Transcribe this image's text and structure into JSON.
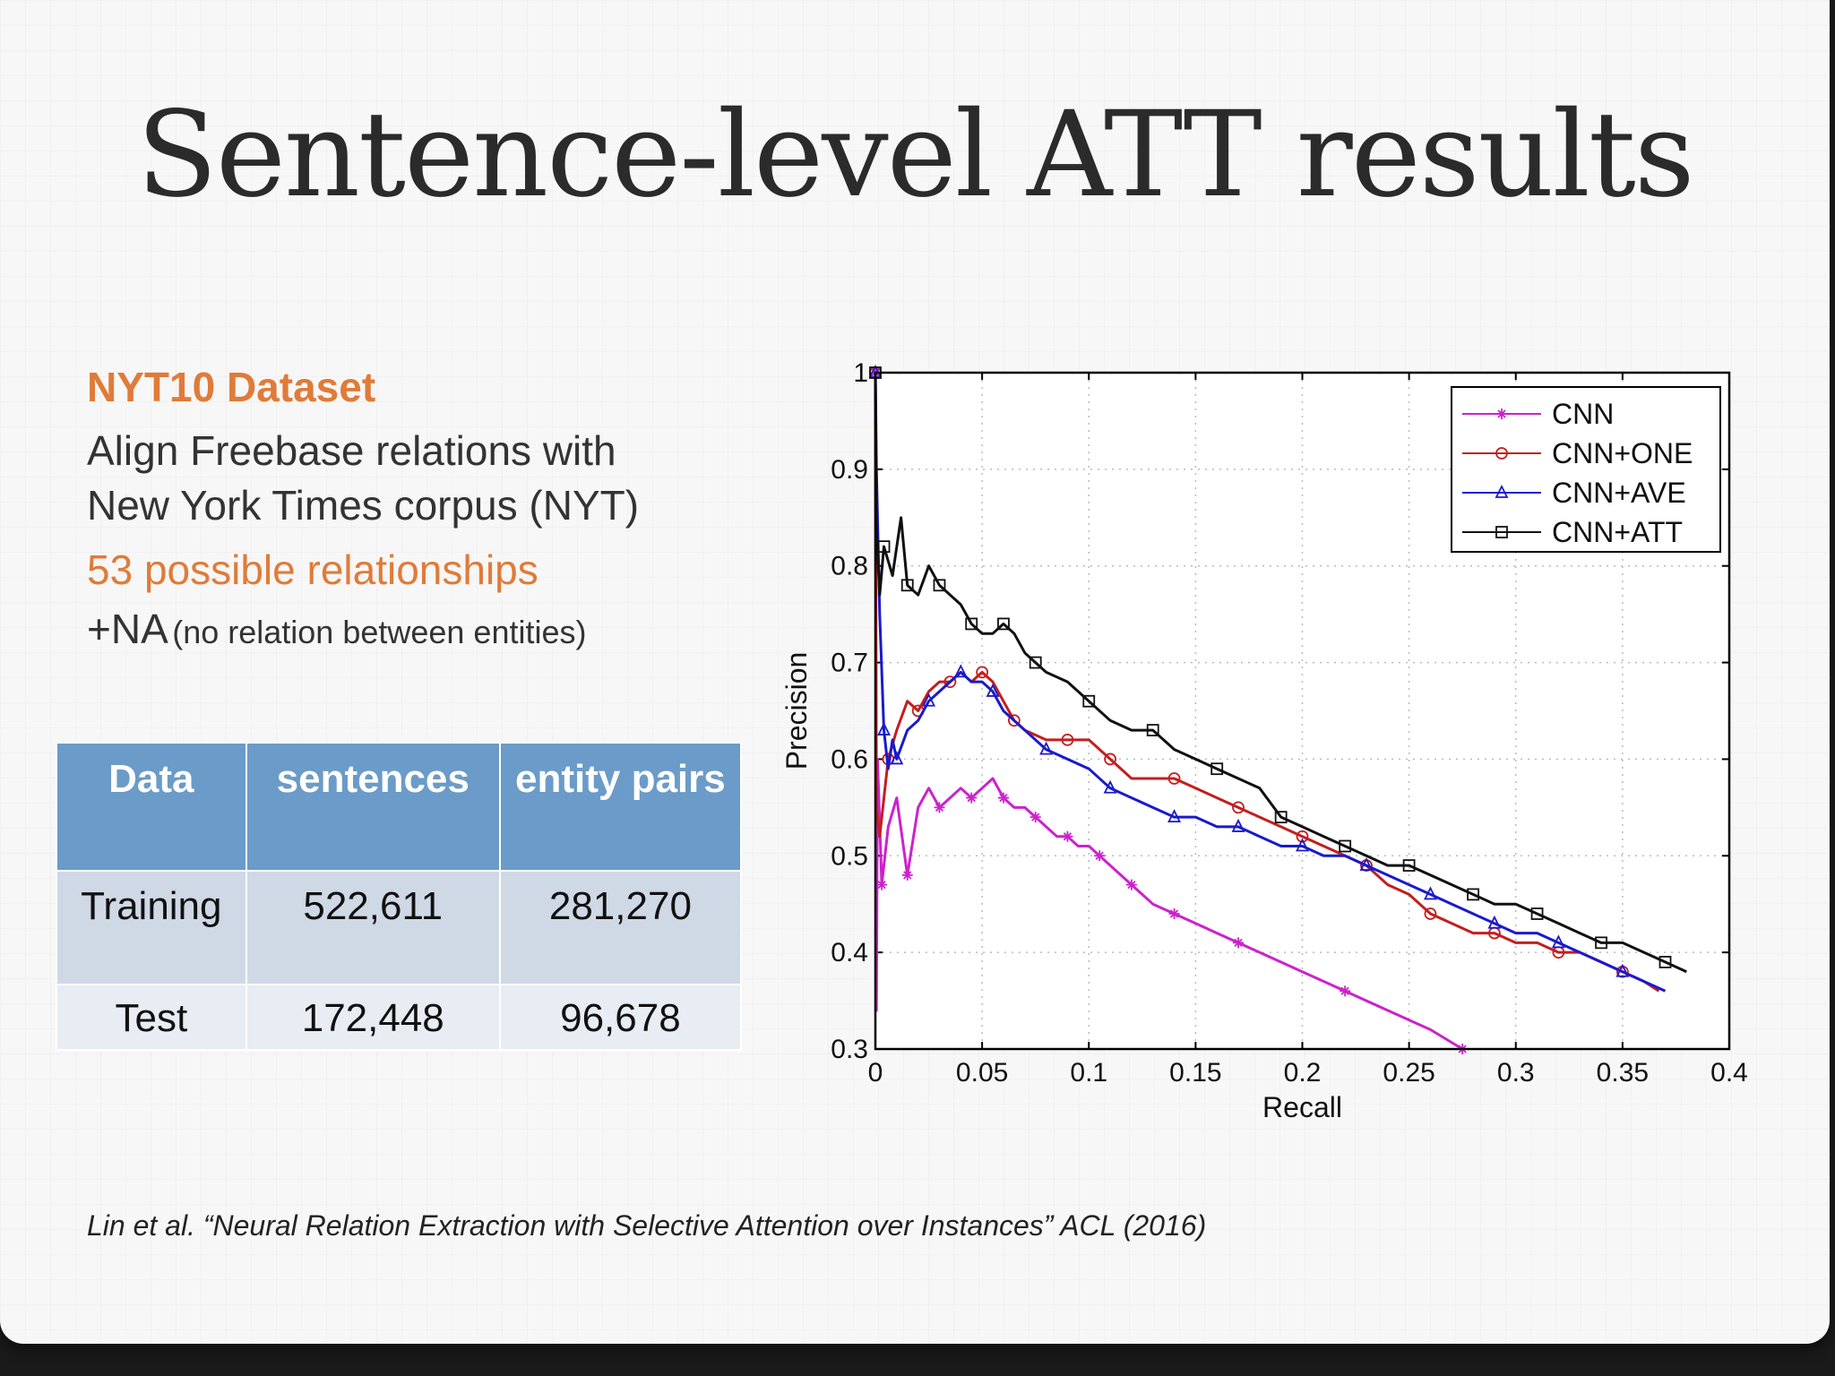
{
  "slide": {
    "title": "Sentence-level ATT results"
  },
  "dataset": {
    "title": "NYT10 Dataset",
    "line1": "Align Freebase relations with",
    "line2": "New York Times corpus (NYT)",
    "relationships": "53 possible relationships",
    "na_prefix": "+NA",
    "na_note": "(no relation between entities)"
  },
  "table": {
    "headers": [
      "Data",
      "sentences",
      "entity pairs"
    ],
    "rows": [
      [
        "Training",
        "522,611",
        "281,270"
      ],
      [
        "Test",
        "172,448",
        "96,678"
      ]
    ]
  },
  "citation": "Lin et al. “Neural Relation Extraction with Selective Attention over Instances” ACL (2016)",
  "chart_data": {
    "type": "line",
    "xlabel": "Recall",
    "ylabel": "Precision",
    "xlim": [
      0,
      0.4
    ],
    "ylim": [
      0.3,
      1
    ],
    "xticks": [
      "0",
      "0.05",
      "0.1",
      "0.15",
      "0.2",
      "0.25",
      "0.3",
      "0.35",
      "0.4"
    ],
    "yticks": [
      "0.3",
      "0.4",
      "0.5",
      "0.6",
      "0.7",
      "0.8",
      "0.9",
      "1"
    ],
    "grid": true,
    "legend_position": "top-right",
    "series": [
      {
        "name": "CNN",
        "color": "#cc22cc",
        "marker": "star",
        "points": [
          [
            0,
            1.0
          ],
          [
            0.0005,
            0.34
          ],
          [
            0.001,
            0.6
          ],
          [
            0.003,
            0.47
          ],
          [
            0.006,
            0.53
          ],
          [
            0.01,
            0.56
          ],
          [
            0.015,
            0.48
          ],
          [
            0.02,
            0.55
          ],
          [
            0.025,
            0.57
          ],
          [
            0.03,
            0.55
          ],
          [
            0.035,
            0.56
          ],
          [
            0.04,
            0.57
          ],
          [
            0.045,
            0.56
          ],
          [
            0.05,
            0.57
          ],
          [
            0.055,
            0.58
          ],
          [
            0.06,
            0.56
          ],
          [
            0.065,
            0.55
          ],
          [
            0.07,
            0.55
          ],
          [
            0.075,
            0.54
          ],
          [
            0.08,
            0.53
          ],
          [
            0.085,
            0.52
          ],
          [
            0.09,
            0.52
          ],
          [
            0.095,
            0.51
          ],
          [
            0.1,
            0.51
          ],
          [
            0.105,
            0.5
          ],
          [
            0.11,
            0.49
          ],
          [
            0.115,
            0.48
          ],
          [
            0.12,
            0.47
          ],
          [
            0.125,
            0.46
          ],
          [
            0.13,
            0.45
          ],
          [
            0.14,
            0.44
          ],
          [
            0.15,
            0.43
          ],
          [
            0.16,
            0.42
          ],
          [
            0.17,
            0.41
          ],
          [
            0.18,
            0.4
          ],
          [
            0.2,
            0.38
          ],
          [
            0.22,
            0.36
          ],
          [
            0.24,
            0.34
          ],
          [
            0.26,
            0.32
          ],
          [
            0.275,
            0.3
          ]
        ]
      },
      {
        "name": "CNN+ONE",
        "color": "#c41e1e",
        "marker": "circle",
        "points": [
          [
            0,
            1.0
          ],
          [
            0.0005,
            0.55
          ],
          [
            0.002,
            0.52
          ],
          [
            0.006,
            0.6
          ],
          [
            0.01,
            0.63
          ],
          [
            0.015,
            0.66
          ],
          [
            0.02,
            0.65
          ],
          [
            0.025,
            0.67
          ],
          [
            0.03,
            0.68
          ],
          [
            0.035,
            0.68
          ],
          [
            0.04,
            0.69
          ],
          [
            0.045,
            0.68
          ],
          [
            0.05,
            0.69
          ],
          [
            0.055,
            0.68
          ],
          [
            0.06,
            0.66
          ],
          [
            0.065,
            0.64
          ],
          [
            0.07,
            0.63
          ],
          [
            0.08,
            0.62
          ],
          [
            0.09,
            0.62
          ],
          [
            0.1,
            0.62
          ],
          [
            0.105,
            0.61
          ],
          [
            0.11,
            0.6
          ],
          [
            0.12,
            0.58
          ],
          [
            0.13,
            0.58
          ],
          [
            0.14,
            0.58
          ],
          [
            0.15,
            0.57
          ],
          [
            0.16,
            0.56
          ],
          [
            0.17,
            0.55
          ],
          [
            0.18,
            0.54
          ],
          [
            0.19,
            0.53
          ],
          [
            0.2,
            0.52
          ],
          [
            0.21,
            0.51
          ],
          [
            0.22,
            0.5
          ],
          [
            0.23,
            0.49
          ],
          [
            0.24,
            0.47
          ],
          [
            0.25,
            0.46
          ],
          [
            0.26,
            0.44
          ],
          [
            0.27,
            0.43
          ],
          [
            0.28,
            0.42
          ],
          [
            0.29,
            0.42
          ],
          [
            0.3,
            0.41
          ],
          [
            0.31,
            0.41
          ],
          [
            0.32,
            0.4
          ],
          [
            0.33,
            0.4
          ],
          [
            0.34,
            0.39
          ],
          [
            0.35,
            0.38
          ],
          [
            0.36,
            0.37
          ],
          [
            0.367,
            0.36
          ]
        ]
      },
      {
        "name": "CNN+AVE",
        "color": "#1a1acc",
        "marker": "triangle",
        "points": [
          [
            0,
            1.0
          ],
          [
            0.0005,
            0.9
          ],
          [
            0.002,
            0.75
          ],
          [
            0.004,
            0.63
          ],
          [
            0.006,
            0.59
          ],
          [
            0.008,
            0.62
          ],
          [
            0.01,
            0.6
          ],
          [
            0.015,
            0.63
          ],
          [
            0.02,
            0.64
          ],
          [
            0.025,
            0.66
          ],
          [
            0.03,
            0.67
          ],
          [
            0.035,
            0.68
          ],
          [
            0.04,
            0.69
          ],
          [
            0.045,
            0.68
          ],
          [
            0.05,
            0.68
          ],
          [
            0.055,
            0.67
          ],
          [
            0.06,
            0.65
          ],
          [
            0.07,
            0.63
          ],
          [
            0.08,
            0.61
          ],
          [
            0.09,
            0.6
          ],
          [
            0.1,
            0.59
          ],
          [
            0.11,
            0.57
          ],
          [
            0.12,
            0.56
          ],
          [
            0.13,
            0.55
          ],
          [
            0.14,
            0.54
          ],
          [
            0.15,
            0.54
          ],
          [
            0.16,
            0.53
          ],
          [
            0.17,
            0.53
          ],
          [
            0.18,
            0.52
          ],
          [
            0.19,
            0.51
          ],
          [
            0.2,
            0.51
          ],
          [
            0.21,
            0.5
          ],
          [
            0.22,
            0.5
          ],
          [
            0.23,
            0.49
          ],
          [
            0.24,
            0.48
          ],
          [
            0.25,
            0.47
          ],
          [
            0.26,
            0.46
          ],
          [
            0.27,
            0.45
          ],
          [
            0.28,
            0.44
          ],
          [
            0.29,
            0.43
          ],
          [
            0.3,
            0.42
          ],
          [
            0.31,
            0.42
          ],
          [
            0.32,
            0.41
          ],
          [
            0.33,
            0.4
          ],
          [
            0.34,
            0.39
          ],
          [
            0.35,
            0.38
          ],
          [
            0.36,
            0.37
          ],
          [
            0.37,
            0.36
          ]
        ]
      },
      {
        "name": "CNN+ATT",
        "color": "#111111",
        "marker": "square",
        "points": [
          [
            0,
            1.0
          ],
          [
            0.0005,
            0.84
          ],
          [
            0.002,
            0.77
          ],
          [
            0.004,
            0.82
          ],
          [
            0.008,
            0.79
          ],
          [
            0.012,
            0.85
          ],
          [
            0.015,
            0.78
          ],
          [
            0.02,
            0.77
          ],
          [
            0.025,
            0.8
          ],
          [
            0.03,
            0.78
          ],
          [
            0.035,
            0.77
          ],
          [
            0.04,
            0.76
          ],
          [
            0.045,
            0.74
          ],
          [
            0.05,
            0.73
          ],
          [
            0.055,
            0.73
          ],
          [
            0.06,
            0.74
          ],
          [
            0.065,
            0.73
          ],
          [
            0.07,
            0.71
          ],
          [
            0.075,
            0.7
          ],
          [
            0.08,
            0.69
          ],
          [
            0.09,
            0.68
          ],
          [
            0.1,
            0.66
          ],
          [
            0.11,
            0.64
          ],
          [
            0.12,
            0.63
          ],
          [
            0.13,
            0.63
          ],
          [
            0.14,
            0.61
          ],
          [
            0.15,
            0.6
          ],
          [
            0.16,
            0.59
          ],
          [
            0.17,
            0.58
          ],
          [
            0.18,
            0.57
          ],
          [
            0.19,
            0.54
          ],
          [
            0.2,
            0.53
          ],
          [
            0.21,
            0.52
          ],
          [
            0.22,
            0.51
          ],
          [
            0.23,
            0.5
          ],
          [
            0.24,
            0.49
          ],
          [
            0.25,
            0.49
          ],
          [
            0.26,
            0.48
          ],
          [
            0.27,
            0.47
          ],
          [
            0.28,
            0.46
          ],
          [
            0.29,
            0.45
          ],
          [
            0.3,
            0.45
          ],
          [
            0.31,
            0.44
          ],
          [
            0.32,
            0.43
          ],
          [
            0.33,
            0.42
          ],
          [
            0.34,
            0.41
          ],
          [
            0.35,
            0.41
          ],
          [
            0.36,
            0.4
          ],
          [
            0.37,
            0.39
          ],
          [
            0.38,
            0.38
          ]
        ]
      }
    ]
  }
}
